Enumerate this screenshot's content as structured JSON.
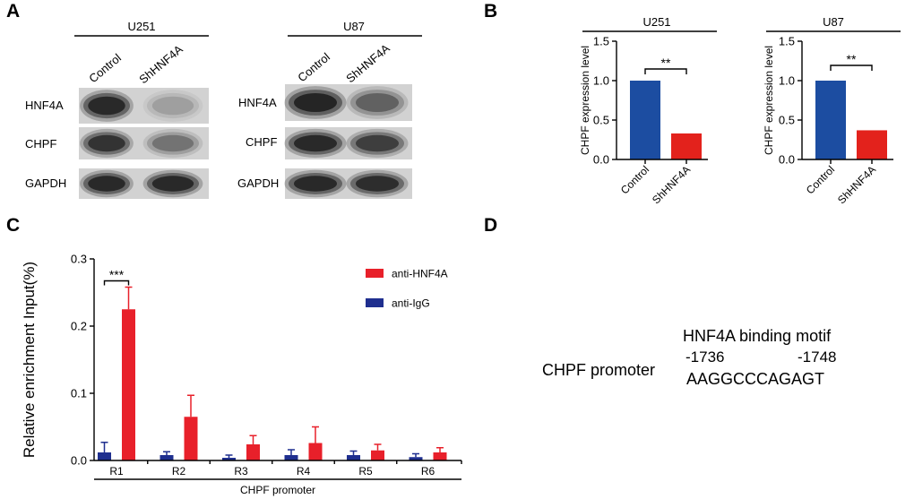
{
  "panels": {
    "A": "A",
    "B": "B",
    "C": "C",
    "D": "D"
  },
  "blots": [
    {
      "cell_line": "U251",
      "lanes": [
        "Control",
        "ShHNF4A"
      ],
      "rows": [
        {
          "protein": "HNF4A",
          "band_intensity": [
            0.95,
            0.2
          ]
        },
        {
          "protein": "CHPF",
          "band_intensity": [
            0.85,
            0.4
          ]
        },
        {
          "protein": "GAPDH",
          "band_intensity": [
            0.95,
            0.95
          ]
        }
      ]
    },
    {
      "cell_line": "U87",
      "lanes": [
        "Control",
        "ShHNF4A"
      ],
      "rows": [
        {
          "protein": "HNF4A",
          "band_intensity": [
            1.0,
            0.5
          ]
        },
        {
          "protein": "CHPF",
          "band_intensity": [
            0.95,
            0.75
          ]
        },
        {
          "protein": "GAPDH",
          "band_intensity": [
            0.95,
            0.9
          ]
        }
      ]
    }
  ],
  "chart_data": [
    {
      "type": "bar",
      "title": "U251",
      "categories": [
        "Control",
        "ShHNF4A"
      ],
      "values": [
        1.0,
        0.33
      ],
      "colors": [
        "#1c4da1",
        "#e3221c"
      ],
      "xlabel": "",
      "ylabel": "CHPF expression level",
      "ylim": [
        0,
        1.5
      ],
      "yticks": [
        "0.0",
        "0.5",
        "1.0",
        "1.5"
      ],
      "significance": {
        "between": [
          "Control",
          "ShHNF4A"
        ],
        "label": "**"
      },
      "grid": false
    },
    {
      "type": "bar",
      "title": "U87",
      "categories": [
        "Control",
        "ShHNF4A"
      ],
      "values": [
        1.0,
        0.37
      ],
      "colors": [
        "#1c4da1",
        "#e3221c"
      ],
      "xlabel": "",
      "ylabel": "CHPF expression level",
      "ylim": [
        0,
        1.5
      ],
      "yticks": [
        "0.0",
        "0.5",
        "1.0",
        "1.5"
      ],
      "significance": {
        "between": [
          "Control",
          "ShHNF4A"
        ],
        "label": "**"
      },
      "grid": false
    },
    {
      "type": "bar",
      "categories": [
        "R1",
        "R2",
        "R3",
        "R4",
        "R5",
        "R6"
      ],
      "series": [
        {
          "name": "anti-HNF4A",
          "color": "#e8202a",
          "values": [
            0.225,
            0.065,
            0.024,
            0.026,
            0.015,
            0.012
          ],
          "errors": [
            0.033,
            0.032,
            0.013,
            0.024,
            0.009,
            0.007
          ]
        },
        {
          "name": "anti-IgG",
          "color": "#1f2f8f",
          "values": [
            0.012,
            0.008,
            0.004,
            0.008,
            0.008,
            0.005
          ],
          "errors": [
            0.015,
            0.005,
            0.004,
            0.008,
            0.006,
            0.005
          ]
        }
      ],
      "xlabel": "CHPF promoter",
      "ylabel": "Relative enrichment Input(%)",
      "ylim": [
        0,
        0.3
      ],
      "yticks": [
        "0.0",
        "0.1",
        "0.2",
        "0.3"
      ],
      "significance": {
        "category": "R1",
        "label": "***"
      },
      "legend": "top-right",
      "grid": false
    }
  ],
  "motif": {
    "title": "HNF4A binding motif",
    "start": "-1736",
    "end": "-1748",
    "label": "CHPF promoter",
    "sequence": "AAGGCCCAGAGT"
  }
}
